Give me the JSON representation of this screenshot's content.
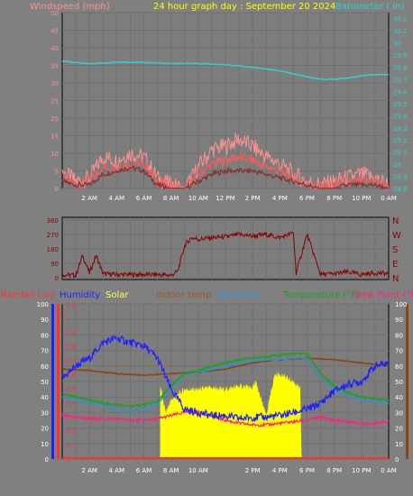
{
  "title": "24 hour graph day : September 20 2024",
  "colors": {
    "background": "#808080",
    "grid": "#707070",
    "windspeed": "#ff9090",
    "windgust": "#ff5a5a",
    "windavg": "#8a3030",
    "barometer": "#30d0d0",
    "direction": "#8b0000",
    "rainfall": "#ff3030",
    "humidity": "#2020ff",
    "solar": "#ffff00",
    "indoor": "#8b4513",
    "windchill": "#3090d0",
    "temperature": "#20a020",
    "dewpoint": "#ff2080",
    "hour_labels": "#ffffff"
  },
  "chart_data": [
    {
      "type": "line",
      "id": "wind-baro",
      "left_axis_title": "Windspeed (mph)",
      "right_axis_title": "Barometer (.in)",
      "left_ticks": [
        "0",
        "5",
        "10",
        "15",
        "20",
        "25",
        "30",
        "35",
        "40",
        "45",
        "50"
      ],
      "right_ticks": [
        "28.8",
        "28.9",
        "29",
        "29.1",
        "29.2",
        "29.3",
        "29.4",
        "29.5",
        "29.6",
        "29.7",
        "29.8",
        "29.9",
        "30",
        "30.1",
        "30.2"
      ],
      "x_ticks": [
        "2 AM",
        "4 AM",
        "6 AM",
        "8 AM",
        "10 AM",
        "12 PM",
        "2 PM",
        "4 PM",
        "6 PM",
        "8 PM",
        "10 PM",
        "0 AM"
      ],
      "ylim_left": [
        0,
        50
      ],
      "ylim_right": [
        28.8,
        30.25
      ],
      "series": [
        {
          "role": "barometer",
          "x": [
            0,
            2,
            4,
            6,
            8,
            10,
            12,
            14,
            16,
            18,
            19,
            20,
            21,
            22,
            23,
            24
          ],
          "values": [
            29.85,
            29.83,
            29.84,
            29.84,
            29.83,
            29.83,
            29.82,
            29.8,
            29.77,
            29.72,
            29.7,
            29.7,
            29.71,
            29.73,
            29.74,
            29.74
          ]
        },
        {
          "role": "windgust",
          "x": [
            0,
            1,
            2,
            3,
            4,
            5,
            6,
            7,
            8,
            9,
            10,
            11,
            12,
            13,
            14,
            15,
            16,
            17,
            18,
            19,
            20,
            21,
            22,
            23,
            24
          ],
          "values": [
            5,
            2,
            3,
            9,
            8,
            10,
            9,
            3,
            1,
            0,
            6,
            11,
            12,
            14,
            12,
            9,
            7,
            4,
            2,
            1,
            2,
            3,
            4,
            3,
            1
          ]
        },
        {
          "role": "windspeed",
          "x": [
            0,
            1,
            2,
            3,
            4,
            5,
            6,
            7,
            8,
            9,
            10,
            11,
            12,
            13,
            14,
            15,
            16,
            17,
            18,
            19,
            20,
            21,
            22,
            23,
            24
          ],
          "values": [
            3,
            1,
            2,
            6,
            6,
            7,
            7,
            2,
            0.5,
            0,
            4,
            7,
            8,
            9,
            8,
            6,
            5,
            3,
            1,
            0.5,
            1,
            2,
            2,
            2,
            0.5
          ]
        },
        {
          "role": "windavg",
          "x": [
            0,
            1,
            2,
            3,
            4,
            5,
            6,
            7,
            8,
            9,
            10,
            11,
            12,
            13,
            14,
            15,
            16,
            17,
            18,
            19,
            20,
            21,
            22,
            23,
            24
          ],
          "values": [
            2,
            1,
            1,
            4,
            5,
            6,
            5,
            1,
            0,
            0,
            2,
            4,
            5,
            5,
            5,
            4,
            3,
            2,
            1,
            0,
            0,
            1,
            1,
            1,
            0
          ]
        }
      ]
    },
    {
      "type": "line",
      "id": "direction",
      "left_ticks": [
        "0",
        "90",
        "180",
        "270",
        "360"
      ],
      "right_ticks": [
        "N",
        "E",
        "S",
        "W",
        "N"
      ],
      "ylim": [
        0,
        360
      ],
      "series": [
        {
          "role": "direction",
          "x": [
            0,
            1,
            1.5,
            2,
            2.5,
            3,
            4,
            5,
            6,
            7,
            8,
            8.5,
            9,
            9.5,
            10,
            11,
            12,
            13,
            14,
            15,
            16,
            17,
            17.2,
            18,
            19,
            20,
            21,
            22,
            23,
            24
          ],
          "values": [
            20,
            15,
            140,
            30,
            140,
            25,
            20,
            20,
            20,
            20,
            15,
            40,
            200,
            250,
            240,
            250,
            255,
            270,
            260,
            270,
            250,
            280,
            30,
            270,
            20,
            25,
            35,
            20,
            30,
            25
          ]
        }
      ]
    },
    {
      "type": "line",
      "id": "temp-humidity",
      "legend": [
        "Rainfall (.in)",
        "Humidity",
        "Solar",
        "Indoor temp",
        "Windchill",
        "Temperature (°F)",
        "Dew Point (°F)"
      ],
      "left_ticks_inner": [
        "0",
        "10",
        "20",
        "30",
        "40",
        "50",
        "60",
        "70",
        "80",
        "90",
        "100"
      ],
      "left_ticks_outer": [
        "0",
        "0.1",
        "0.2",
        "0.3",
        "0.4",
        "0.5",
        "0.6",
        "0.7",
        "0.8",
        "0.9",
        "1",
        "1.1"
      ],
      "right_ticks": [
        "0",
        "10",
        "20",
        "30",
        "40",
        "50",
        "60",
        "70",
        "80",
        "90",
        "100"
      ],
      "x_ticks": [
        "2 AM",
        "4 AM",
        "6 AM",
        "8 AM",
        "10 AM",
        "2 PM",
        "4 PM",
        "6 PM",
        "8 PM",
        "10 PM",
        "0 AM"
      ],
      "ylim": [
        0,
        100
      ],
      "series": [
        {
          "role": "humidity",
          "x": [
            0,
            1,
            2,
            3,
            4,
            5,
            6,
            7,
            8,
            9,
            10,
            11,
            12,
            13,
            14,
            15,
            16,
            17,
            18,
            19,
            20,
            21,
            22,
            23,
            24
          ],
          "values": [
            52,
            60,
            65,
            75,
            78,
            75,
            73,
            65,
            45,
            32,
            30,
            28,
            28,
            26,
            27,
            27,
            28,
            30,
            32,
            36,
            44,
            48,
            50,
            60,
            62
          ]
        },
        {
          "role": "temperature",
          "x": [
            0,
            1,
            2,
            3,
            4,
            5,
            6,
            7,
            8,
            9,
            10,
            11,
            12,
            13,
            14,
            15,
            16,
            17,
            18,
            19,
            20,
            21,
            22,
            23,
            24
          ],
          "values": [
            42,
            40,
            38,
            36,
            35,
            34,
            35,
            37,
            47,
            55,
            57,
            60,
            62,
            64,
            65,
            66,
            67,
            68,
            68,
            55,
            47,
            43,
            40,
            39,
            38
          ]
        },
        {
          "role": "windchill",
          "x": [
            0,
            1,
            2,
            3,
            4,
            5,
            6,
            7,
            8,
            9,
            10,
            11,
            12,
            13,
            14,
            15,
            16,
            17,
            18,
            19,
            20,
            21,
            22,
            23,
            24
          ],
          "values": [
            40,
            37,
            36,
            35,
            32,
            31,
            32,
            35,
            46,
            54,
            56,
            58,
            60,
            62,
            63,
            64,
            64,
            65,
            65,
            52,
            45,
            41,
            38,
            37,
            36
          ]
        },
        {
          "role": "dewpoint",
          "x": [
            0,
            1,
            2,
            3,
            4,
            5,
            6,
            7,
            8,
            9,
            10,
            11,
            12,
            13,
            14,
            15,
            16,
            17,
            18,
            19,
            20,
            21,
            22,
            23,
            24
          ],
          "values": [
            28,
            27,
            26,
            26,
            26,
            25,
            25,
            26,
            28,
            30,
            30,
            28,
            25,
            23,
            22,
            22,
            23,
            24,
            25,
            27,
            25,
            24,
            23,
            23,
            24
          ]
        },
        {
          "role": "indoor",
          "x": [
            0,
            2,
            4,
            6,
            8,
            10,
            12,
            14,
            16,
            18,
            20,
            22,
            24
          ],
          "values": [
            58,
            57,
            55,
            54,
            55,
            56,
            58,
            62,
            64,
            65,
            64,
            62,
            60
          ]
        },
        {
          "role": "solar",
          "x": [
            7.2,
            7.6,
            8,
            9,
            10,
            11,
            12,
            13,
            14,
            14.2,
            15,
            15.6,
            16,
            17,
            17.5,
            17.6
          ],
          "values": [
            48,
            30,
            38,
            45,
            45,
            46,
            45,
            47,
            46,
            50,
            28,
            54,
            55,
            50,
            45,
            0
          ]
        },
        {
          "role": "rainfall",
          "x": [
            0,
            24
          ],
          "values": [
            0,
            0
          ]
        }
      ]
    }
  ]
}
